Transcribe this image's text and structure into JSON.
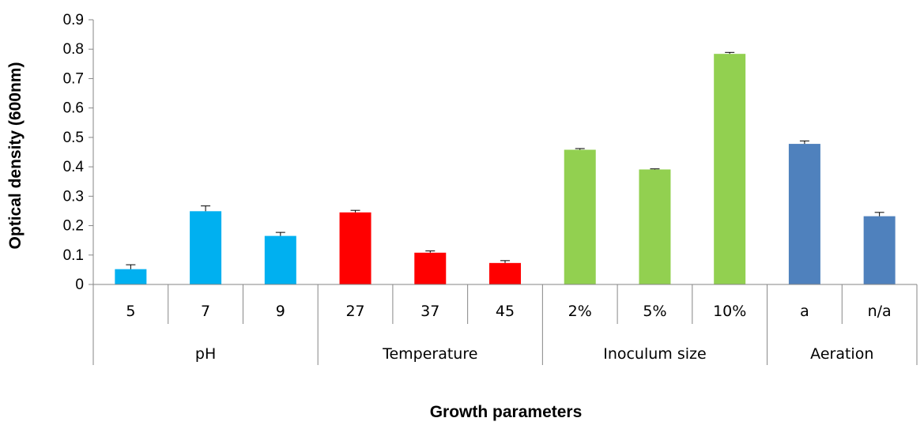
{
  "chart_data": {
    "type": "bar",
    "title": "",
    "xlabel": "Growth parameters",
    "ylabel": "Optical density (600nm)",
    "ylim": [
      0,
      0.9
    ],
    "yticks": [
      "0",
      "0.1",
      "0.2",
      "0.3",
      "0.4",
      "0.5",
      "0.6",
      "0.7",
      "0.8",
      "0.9"
    ],
    "grid": false,
    "groups": [
      {
        "label": "pH",
        "color": "#00B0F0",
        "categories": [
          "5",
          "7",
          "9"
        ],
        "values": [
          0.052,
          0.249,
          0.165
        ],
        "errors": [
          0.015,
          0.018,
          0.012
        ]
      },
      {
        "label": "Temperature",
        "color": "#FF0000",
        "categories": [
          "27",
          "37",
          "45"
        ],
        "values": [
          0.245,
          0.108,
          0.073
        ],
        "errors": [
          0.007,
          0.006,
          0.008
        ]
      },
      {
        "label": "Inoculum size",
        "color": "#92D050",
        "categories": [
          "2%",
          "5%",
          "10%"
        ],
        "values": [
          0.458,
          0.391,
          0.784
        ],
        "errors": [
          0.004,
          0.002,
          0.005
        ]
      },
      {
        "label": "Aeration",
        "color": "#4F81BD",
        "categories": [
          "a",
          "n/a"
        ],
        "values": [
          0.478,
          0.232
        ],
        "errors": [
          0.01,
          0.013
        ]
      }
    ]
  }
}
